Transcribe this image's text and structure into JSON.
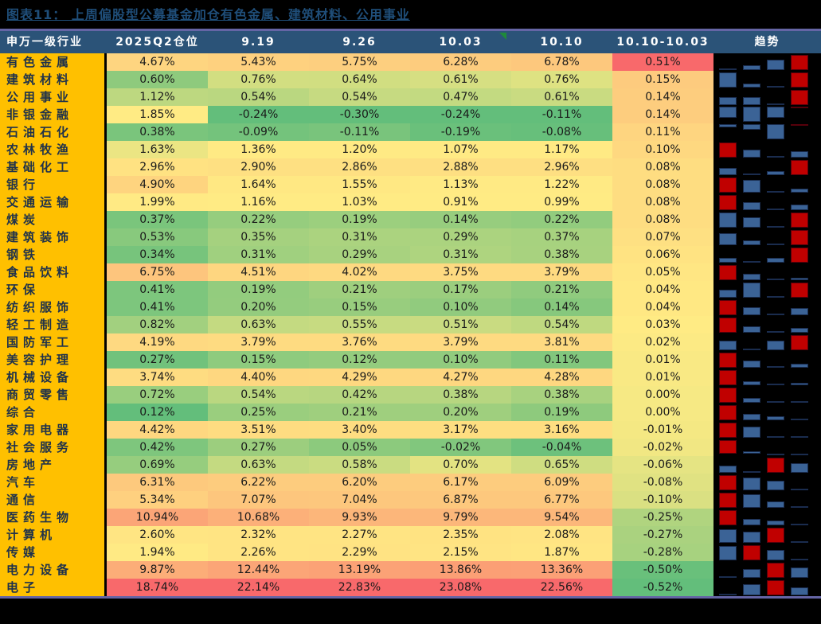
{
  "chart_data": {
    "type": "table",
    "subtype": "heatmap-table-with-sparklines",
    "title": "图表11： 上周偏股型公募基金加仓有色金属、建筑材料、公用事业",
    "columns": [
      "申万一级行业",
      "2025Q2仓位",
      "9.19",
      "9.26",
      "10.03",
      "10.10",
      "10.10-10.03",
      "趋势"
    ],
    "value_format": "percent, 2 decimals",
    "rows": [
      {
        "industry": "有色金属",
        "values": [
          4.67,
          5.43,
          5.75,
          6.28,
          6.78,
          0.51
        ]
      },
      {
        "industry": "建筑材料",
        "values": [
          0.6,
          0.76,
          0.64,
          0.61,
          0.76,
          0.15
        ]
      },
      {
        "industry": "公用事业",
        "values": [
          1.12,
          0.54,
          0.54,
          0.47,
          0.61,
          0.14
        ]
      },
      {
        "industry": "非银金融",
        "values": [
          1.85,
          -0.24,
          -0.3,
          -0.24,
          -0.11,
          0.14
        ]
      },
      {
        "industry": "石油石化",
        "values": [
          0.38,
          -0.09,
          -0.11,
          -0.19,
          -0.08,
          0.11
        ]
      },
      {
        "industry": "农林牧渔",
        "values": [
          1.63,
          1.36,
          1.2,
          1.07,
          1.17,
          0.1
        ]
      },
      {
        "industry": "基础化工",
        "values": [
          2.96,
          2.9,
          2.86,
          2.88,
          2.96,
          0.08
        ]
      },
      {
        "industry": "银行",
        "values": [
          4.9,
          1.64,
          1.55,
          1.13,
          1.22,
          0.08
        ]
      },
      {
        "industry": "交通运输",
        "values": [
          1.99,
          1.16,
          1.03,
          0.91,
          0.99,
          0.08
        ]
      },
      {
        "industry": "煤炭",
        "values": [
          0.37,
          0.22,
          0.19,
          0.14,
          0.22,
          0.08
        ]
      },
      {
        "industry": "建筑装饰",
        "values": [
          0.53,
          0.35,
          0.31,
          0.29,
          0.37,
          0.07
        ]
      },
      {
        "industry": "钢铁",
        "values": [
          0.34,
          0.31,
          0.29,
          0.31,
          0.38,
          0.06
        ]
      },
      {
        "industry": "食品饮料",
        "values": [
          6.75,
          4.51,
          4.02,
          3.75,
          3.79,
          0.05
        ]
      },
      {
        "industry": "环保",
        "values": [
          0.41,
          0.19,
          0.21,
          0.17,
          0.21,
          0.04
        ]
      },
      {
        "industry": "纺织服饰",
        "values": [
          0.41,
          0.2,
          0.15,
          0.1,
          0.14,
          0.04
        ]
      },
      {
        "industry": "轻工制造",
        "values": [
          0.82,
          0.63,
          0.55,
          0.51,
          0.54,
          0.03
        ]
      },
      {
        "industry": "国防军工",
        "values": [
          4.19,
          3.79,
          3.76,
          3.79,
          3.81,
          0.02
        ]
      },
      {
        "industry": "美容护理",
        "values": [
          0.27,
          0.15,
          0.12,
          0.1,
          0.11,
          0.01
        ]
      },
      {
        "industry": "机械设备",
        "values": [
          3.74,
          4.4,
          4.29,
          4.27,
          4.28,
          0.01
        ]
      },
      {
        "industry": "商贸零售",
        "values": [
          0.72,
          0.54,
          0.42,
          0.38,
          0.38,
          0.0
        ]
      },
      {
        "industry": "综合",
        "values": [
          0.12,
          0.25,
          0.21,
          0.2,
          0.19,
          0.0
        ]
      },
      {
        "industry": "家用电器",
        "values": [
          4.42,
          3.51,
          3.4,
          3.17,
          3.16,
          -0.01
        ]
      },
      {
        "industry": "社会服务",
        "values": [
          0.42,
          0.27,
          0.05,
          -0.02,
          -0.04,
          -0.02
        ]
      },
      {
        "industry": "房地产",
        "values": [
          0.69,
          0.63,
          0.58,
          0.7,
          0.65,
          -0.06
        ]
      },
      {
        "industry": "汽车",
        "values": [
          6.31,
          6.22,
          6.2,
          6.17,
          6.09,
          -0.08
        ]
      },
      {
        "industry": "通信",
        "values": [
          5.34,
          7.07,
          7.04,
          6.87,
          6.77,
          -0.1
        ]
      },
      {
        "industry": "医药生物",
        "values": [
          10.94,
          10.68,
          9.93,
          9.79,
          9.54,
          -0.25
        ]
      },
      {
        "industry": "计算机",
        "values": [
          2.6,
          2.32,
          2.27,
          2.35,
          2.08,
          -0.27
        ]
      },
      {
        "industry": "传媒",
        "values": [
          1.94,
          2.26,
          2.29,
          2.15,
          1.87,
          -0.28
        ]
      },
      {
        "industry": "电力设备",
        "values": [
          9.87,
          12.44,
          13.19,
          13.86,
          13.36,
          -0.5
        ]
      },
      {
        "industry": "电子",
        "values": [
          18.74,
          22.14,
          22.83,
          23.08,
          22.56,
          -0.52
        ]
      }
    ],
    "heatmap_scale": {
      "rule": "per-column 3-color scale, low=min, mid=median, high=max",
      "low_color": "#63BE7B",
      "mid_color": "#FFEB84",
      "high_color": "#F8696B"
    },
    "sparkline": {
      "source_columns": [
        "9.19",
        "9.26",
        "10.03",
        "10.10"
      ],
      "bar_color": "#3B6396",
      "max_bar_color": "#C00000"
    },
    "header_marker": {
      "cell": "10.03",
      "shape": "green-corner-triangle",
      "color": "#1F8A3A"
    }
  },
  "styles": {
    "background": "#000000",
    "title_color": "#1F4E79",
    "rule_color": "#6565A5",
    "header_bg": "#2B5378",
    "header_text": "#FFFFFF",
    "label_bg": "#FFC000",
    "label_text": "#20324A"
  }
}
